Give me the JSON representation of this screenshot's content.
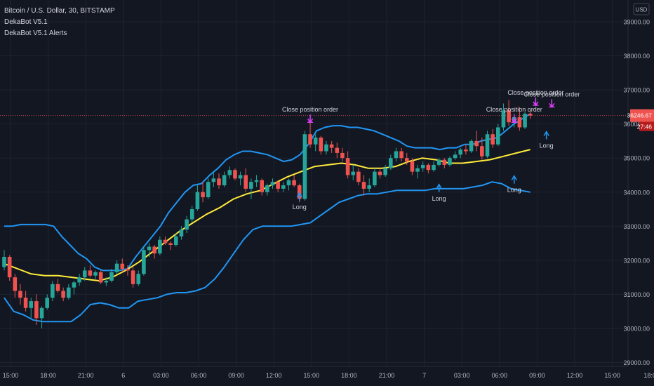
{
  "header": {
    "symbol": "Bitcoin / U.S. Dollar, 30, BITSTAMP",
    "indicator1": "DekaBot V5.1",
    "indicator2": "DekaBot V5.1 Alerts",
    "currency": "USD"
  },
  "colors": {
    "background": "#131722",
    "grid": "#1f2330",
    "up": "#26a69a",
    "down": "#ef5350",
    "band": "#2196f3",
    "ma": "#ffeb3b",
    "buy": "#2196f3",
    "sell": "#e040fb",
    "price_line": "#ef5350"
  },
  "price_label": {
    "price": "36246.67",
    "timer": "27:46"
  },
  "chart_data": {
    "type": "candlestick",
    "title": "Bitcoin / U.S. Dollar, 30, BITSTAMP",
    "ylim": [
      28800,
      39300
    ],
    "y_ticks": [
      29000,
      30000,
      31000,
      32000,
      33000,
      34000,
      35000,
      36000,
      37000,
      38000,
      39000
    ],
    "x_tick_labels": [
      "15:00",
      "18:00",
      "21:00",
      "6",
      "03:00",
      "06:00",
      "09:00",
      "12:00",
      "15:00",
      "18:00",
      "21:00",
      "7",
      "03:00",
      "06:00",
      "09:00",
      "12:00",
      "15:00",
      "18:0"
    ],
    "grid": true,
    "last_price": 36246.67,
    "candles": [
      [
        31800,
        32300,
        31700,
        32100
      ],
      [
        32100,
        32150,
        31400,
        31500
      ],
      [
        31500,
        31600,
        30900,
        31100
      ],
      [
        31100,
        31300,
        30700,
        30900
      ],
      [
        30900,
        31100,
        30500,
        30600
      ],
      [
        30600,
        30900,
        30300,
        30800
      ],
      [
        30800,
        31000,
        30100,
        30300
      ],
      [
        30300,
        30650,
        30000,
        30600
      ],
      [
        30600,
        31000,
        30550,
        30900
      ],
      [
        30900,
        31400,
        30800,
        31300
      ],
      [
        31300,
        31450,
        31050,
        31100
      ],
      [
        31100,
        31200,
        30800,
        30900
      ],
      [
        30900,
        31300,
        30850,
        31200
      ],
      [
        31200,
        31400,
        31000,
        31350
      ],
      [
        31350,
        31600,
        31250,
        31500
      ],
      [
        31500,
        31800,
        31400,
        31700
      ],
      [
        31700,
        31850,
        31500,
        31550
      ],
      [
        31550,
        31700,
        31450,
        31650
      ],
      [
        31650,
        31700,
        31300,
        31350
      ],
      [
        31350,
        31500,
        31250,
        31400
      ],
      [
        31400,
        31750,
        31350,
        31650
      ],
      [
        31650,
        32000,
        31600,
        31900
      ],
      [
        31900,
        32050,
        31650,
        31750
      ],
      [
        31750,
        31850,
        31550,
        31700
      ],
      [
        31700,
        31800,
        31200,
        31300
      ],
      [
        31300,
        31700,
        31250,
        31600
      ],
      [
        31600,
        32400,
        31550,
        32300
      ],
      [
        32300,
        32500,
        32100,
        32400
      ],
      [
        32400,
        32450,
        32050,
        32200
      ],
      [
        32200,
        32700,
        32150,
        32600
      ],
      [
        32600,
        32700,
        32450,
        32500
      ],
      [
        32500,
        32550,
        32300,
        32450
      ],
      [
        32450,
        32800,
        32400,
        32700
      ],
      [
        32700,
        33000,
        32600,
        32900
      ],
      [
        32900,
        33300,
        32800,
        33200
      ],
      [
        33200,
        33600,
        33100,
        33500
      ],
      [
        33500,
        34200,
        33450,
        34000
      ],
      [
        34000,
        34300,
        33700,
        33850
      ],
      [
        33850,
        34400,
        33800,
        34300
      ],
      [
        34300,
        34600,
        34150,
        34400
      ],
      [
        34400,
        34550,
        34100,
        34200
      ],
      [
        34200,
        34600,
        34150,
        34500
      ],
      [
        34500,
        34750,
        34400,
        34650
      ],
      [
        34650,
        34700,
        34350,
        34400
      ],
      [
        34400,
        34600,
        34200,
        34500
      ],
      [
        34500,
        34700,
        34000,
        34100
      ],
      [
        34100,
        34400,
        33800,
        34300
      ],
      [
        34300,
        34500,
        34150,
        34350
      ],
      [
        34350,
        34400,
        33900,
        34000
      ],
      [
        34000,
        34250,
        33900,
        34200
      ],
      [
        34200,
        34400,
        34100,
        34300
      ],
      [
        34300,
        34350,
        34000,
        34100
      ],
      [
        34100,
        34300,
        34000,
        34200
      ],
      [
        34200,
        34400,
        34050,
        34350
      ],
      [
        34350,
        34500,
        34150,
        34200
      ],
      [
        34200,
        34250,
        33700,
        33800
      ],
      [
        33800,
        35800,
        33750,
        35700
      ],
      [
        35700,
        36050,
        35300,
        35400
      ],
      [
        35400,
        35700,
        35200,
        35600
      ],
      [
        35600,
        35650,
        35100,
        35200
      ],
      [
        35200,
        35500,
        35100,
        35400
      ],
      [
        35400,
        35500,
        35150,
        35300
      ],
      [
        35300,
        35450,
        35000,
        35150
      ],
      [
        35150,
        35300,
        34900,
        35000
      ],
      [
        35000,
        35200,
        34400,
        34500
      ],
      [
        34500,
        34800,
        34350,
        34600
      ],
      [
        34600,
        34700,
        34200,
        34300
      ],
      [
        34300,
        34500,
        33900,
        34100
      ],
      [
        34100,
        34400,
        34000,
        34200
      ],
      [
        34200,
        34700,
        34150,
        34600
      ],
      [
        34600,
        34700,
        34400,
        34500
      ],
      [
        34500,
        34800,
        34450,
        34700
      ],
      [
        34700,
        35100,
        34650,
        35000
      ],
      [
        35000,
        35300,
        34900,
        35200
      ],
      [
        35200,
        35300,
        34900,
        35000
      ],
      [
        35000,
        35150,
        34800,
        34900
      ],
      [
        34900,
        35000,
        34500,
        34600
      ],
      [
        34600,
        34800,
        34400,
        34700
      ],
      [
        34700,
        34900,
        34600,
        34800
      ],
      [
        34800,
        34850,
        34550,
        34650
      ],
      [
        34650,
        34900,
        34600,
        34800
      ],
      [
        34800,
        35000,
        34750,
        34950
      ],
      [
        34950,
        35000,
        34700,
        34800
      ],
      [
        34800,
        35050,
        34750,
        35000
      ],
      [
        35000,
        35200,
        34950,
        35100
      ],
      [
        35100,
        35300,
        35000,
        35250
      ],
      [
        35250,
        35400,
        35100,
        35200
      ],
      [
        35200,
        35550,
        35150,
        35500
      ],
      [
        35500,
        35800,
        35200,
        35350
      ],
      [
        35350,
        35600,
        34950,
        35050
      ],
      [
        35050,
        35800,
        35000,
        35700
      ],
      [
        35700,
        35850,
        35300,
        35400
      ],
      [
        35400,
        36000,
        35350,
        35900
      ],
      [
        35900,
        36600,
        35800,
        36400
      ],
      [
        36400,
        36700,
        35950,
        36050
      ],
      [
        36050,
        36300,
        35900,
        36200
      ],
      [
        36200,
        36500,
        35800,
        35900
      ],
      [
        35900,
        36350,
        35850,
        36300
      ],
      [
        36300,
        36400,
        36150,
        36247
      ]
    ],
    "series": [
      {
        "name": "upper band",
        "values": [
          33000,
          33000,
          33050,
          33050,
          33050,
          33050,
          33000,
          32700,
          32450,
          32200,
          32050,
          31800,
          31700,
          31700,
          31700,
          31750,
          32100,
          32400,
          32700,
          33000,
          33400,
          33700,
          34000,
          34200,
          34250,
          34500,
          34700,
          34950,
          35100,
          35200,
          35200,
          35150,
          35100,
          35000,
          34900,
          34950,
          35100,
          35400,
          35800,
          35900,
          35950,
          35950,
          35900,
          35900,
          35850,
          35800,
          35700,
          35600,
          35500,
          35350,
          35300,
          35300,
          35300,
          35250,
          35300,
          35300,
          35400,
          35400,
          35500,
          35550,
          35600,
          35800,
          36000,
          36150,
          36300
        ]
      },
      {
        "name": "lower band",
        "values": [
          30900,
          30500,
          30400,
          30250,
          30200,
          30200,
          30200,
          30200,
          30400,
          30700,
          30750,
          30700,
          30600,
          30600,
          30800,
          30850,
          30900,
          31000,
          31050,
          31050,
          31100,
          31200,
          31450,
          31800,
          32200,
          32600,
          32900,
          33000,
          33000,
          33000,
          33000,
          33050,
          33100,
          33300,
          33500,
          33700,
          33800,
          33900,
          33950,
          33950,
          34000,
          34050,
          34050,
          34050,
          34050,
          34100,
          34100,
          34100,
          34100,
          34150,
          34200,
          34300,
          34250,
          34100,
          34050,
          34000
        ]
      },
      {
        "name": "moving average",
        "values": [
          31900,
          31750,
          31600,
          31550,
          31550,
          31500,
          31450,
          31400,
          31500,
          31700,
          31950,
          32250,
          32550,
          32850,
          33100,
          33350,
          33550,
          33800,
          33950,
          34050,
          34250,
          34450,
          34600,
          34750,
          34800,
          34850,
          34800,
          34700,
          34700,
          34750,
          34900,
          35000,
          34950,
          34850,
          34850,
          34900,
          34950,
          35050,
          35150,
          35250
        ]
      }
    ],
    "annotations": [
      {
        "type": "buy",
        "text": "Long",
        "x_index": 55,
        "price": 33750
      },
      {
        "type": "buy",
        "text": "Long",
        "x_index": 81,
        "price": 34000
      },
      {
        "type": "buy",
        "text": "Long",
        "x_index": 95,
        "price": 34250
      },
      {
        "type": "buy",
        "text": "Long",
        "x_index": 101,
        "price": 35550
      },
      {
        "type": "sell",
        "text": "Close position order",
        "x_index": 57,
        "price": 36050
      },
      {
        "type": "sell",
        "text": "Close position order",
        "x_index": 95,
        "price": 36050
      },
      {
        "type": "sell",
        "text": "Close position order",
        "x_index": 99,
        "price": 36550
      },
      {
        "type": "sell",
        "text": "Close position order",
        "x_index": 102,
        "price": 36500
      }
    ]
  }
}
